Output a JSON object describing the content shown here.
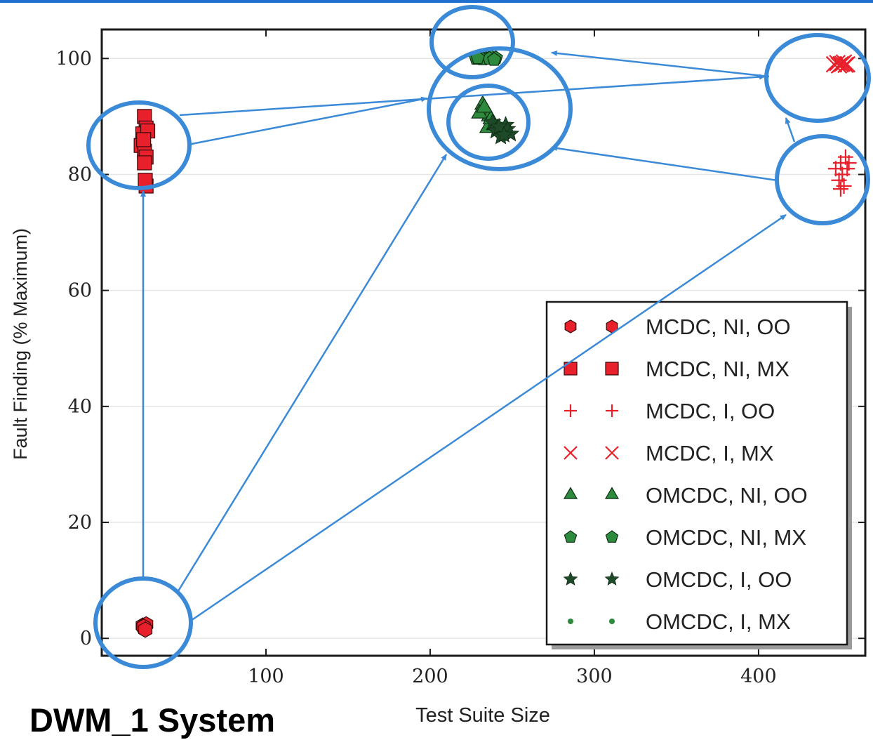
{
  "colors": {
    "red": "#e8202c",
    "green": "#2e8b3e",
    "annotation_blue": "#3b8ad8",
    "top_rule": "#1f6fcf"
  },
  "chart_data": {
    "type": "scatter",
    "title": "",
    "xlabel": "Test Suite Size",
    "ylabel": "Fault Finding (% Maximum)",
    "xlim": [
      0,
      465
    ],
    "ylim": [
      -3,
      105
    ],
    "xticks": [
      100,
      200,
      300,
      400
    ],
    "yticks": [
      0,
      20,
      40,
      60,
      80,
      100
    ],
    "grid": "horizontal",
    "legend_position": "lower-right",
    "series": [
      {
        "name": "MCDC, NI, OO",
        "marker": "hexagon",
        "color": "red",
        "x": [
          25,
          26,
          27,
          25.5,
          26.5
        ],
        "y": [
          2.2,
          1.8,
          2.4,
          2.0,
          1.5
        ]
      },
      {
        "name": "MCDC, NI, MX",
        "marker": "square",
        "color": "red",
        "x": [
          26,
          27,
          25,
          24,
          28,
          26,
          27,
          25.5,
          26,
          27,
          26.5
        ],
        "y": [
          90,
          88,
          87,
          85,
          87.5,
          84,
          83,
          86,
          82,
          78,
          79
        ]
      },
      {
        "name": "MCDC, I, OO",
        "marker": "plus",
        "color": "red",
        "x": [
          450,
          453,
          447,
          455,
          451,
          449,
          452,
          454,
          450
        ],
        "y": [
          82,
          83,
          81,
          82,
          80,
          79,
          78,
          81,
          77.5
        ]
      },
      {
        "name": "MCDC, I, MX",
        "marker": "x",
        "color": "red",
        "x": [
          446,
          448,
          450,
          452,
          454,
          449,
          451,
          453
        ],
        "y": [
          99,
          99.2,
          99,
          99.3,
          99,
          98.8,
          99.1,
          98.9
        ]
      },
      {
        "name": "OMCDC, NI, OO",
        "marker": "triangle",
        "color": "green",
        "x": [
          232,
          234,
          236,
          230,
          238,
          235,
          237,
          233,
          239
        ],
        "y": [
          92,
          91,
          90,
          90.5,
          89,
          88,
          89.5,
          91.5,
          88.5
        ]
      },
      {
        "name": "OMCDC, NI, MX",
        "marker": "pentagon",
        "color": "green",
        "x": [
          228,
          231,
          234,
          237,
          240,
          232,
          236,
          239,
          229
        ],
        "y": [
          100,
          100.2,
          100,
          100.3,
          100.1,
          99.9,
          100,
          99.8,
          100.1
        ]
      },
      {
        "name": "OMCDC, I, OO",
        "marker": "star",
        "color": "green",
        "x": [
          238,
          241,
          244,
          246,
          240,
          243,
          247,
          249,
          242,
          245
        ],
        "y": [
          89,
          88,
          87,
          88.5,
          87.5,
          86.5,
          87.8,
          87,
          88.2,
          86.8
        ]
      },
      {
        "name": "OMCDC, I, MX",
        "marker": "dot",
        "color": "green",
        "x": [],
        "y": []
      }
    ]
  },
  "caption": "DWM_1 System"
}
